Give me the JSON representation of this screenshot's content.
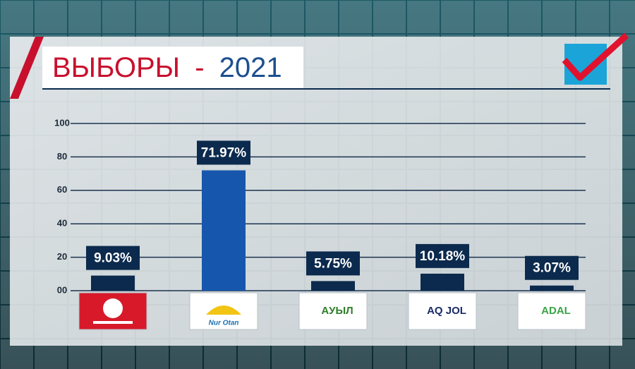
{
  "chart_data": {
    "type": "bar",
    "title": [
      "ВЫБОРЫ",
      "-",
      "2021"
    ],
    "categories": [
      null,
      "Nur Otan",
      "AУЫЛ",
      "AQ JOL",
      "ADAL"
    ],
    "values": [
      9.03,
      71.97,
      5.75,
      10.18,
      3.07
    ],
    "value_labels": [
      "9.03%",
      "71.97%",
      "5.75%",
      "10.18%",
      "3.07%"
    ],
    "colors": [
      "#0b2a4d",
      "#1657ad",
      "#0b2a4d",
      "#0b2a4d",
      "#0b2a4d"
    ],
    "ylim": [
      0,
      100
    ],
    "yticks": [
      {
        "value": 0,
        "label": "00"
      },
      20,
      40,
      60,
      80,
      100
    ],
    "grid": true
  }
}
